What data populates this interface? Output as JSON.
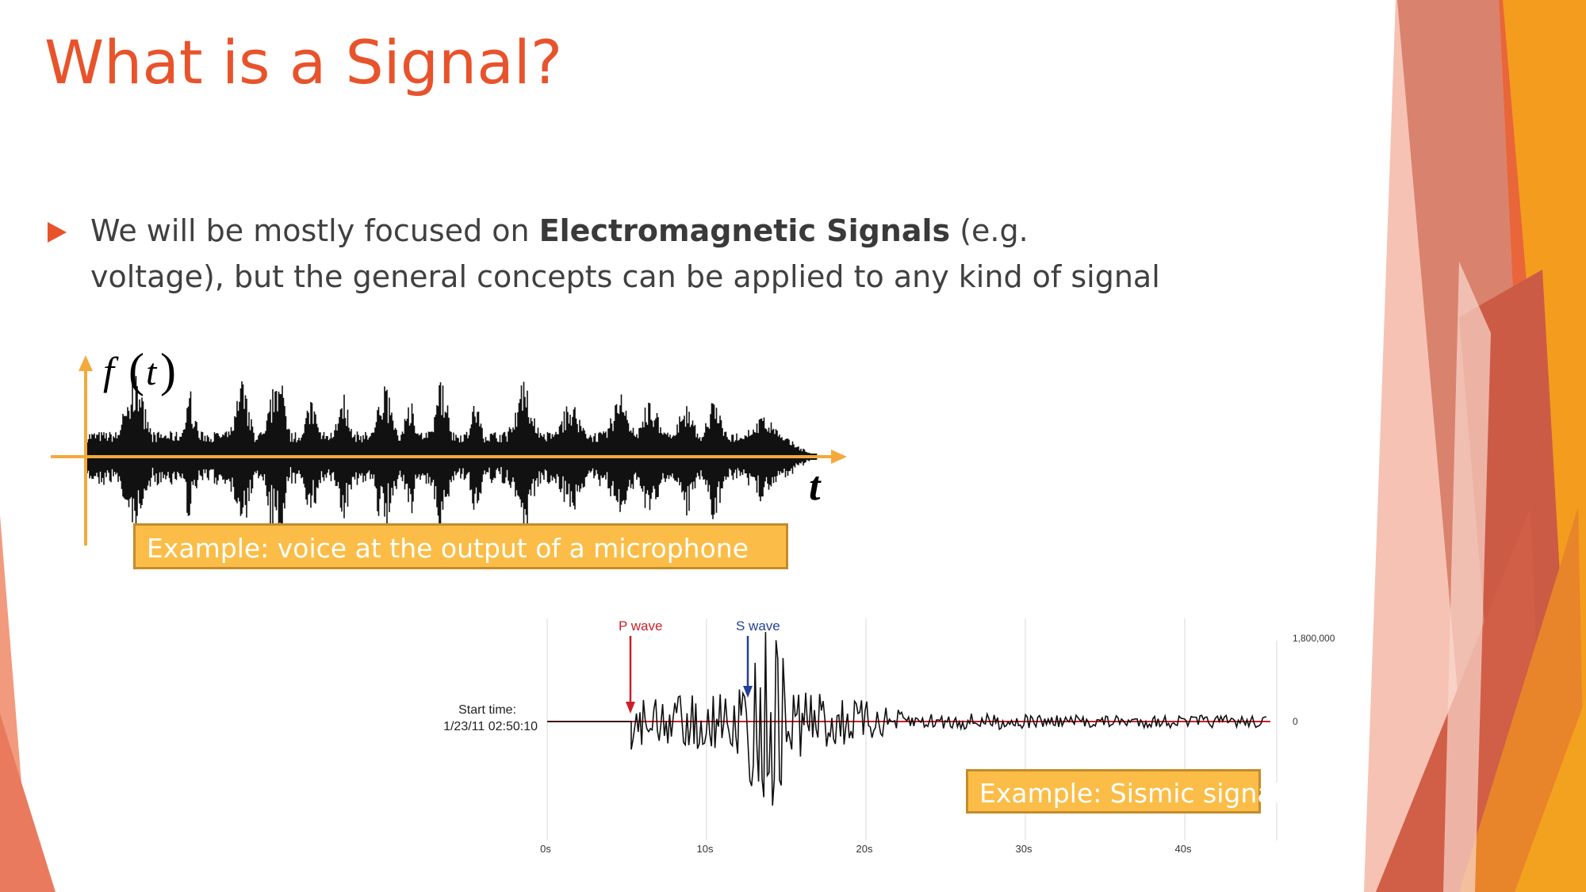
{
  "slide": {
    "title": "What is a Signal?",
    "bullet": {
      "prefix": "We will be mostly focused on ",
      "bold": "Electromagnetic Signals",
      "suffix": " (e.g. voltage), but the general concepts can be applied to any kind of signal"
    }
  },
  "voice_figure": {
    "y_label_f": "f",
    "y_label_paren_open": "(",
    "y_label_t": "t",
    "y_label_paren_close": ")",
    "x_label": "t",
    "caption": "Example: voice at the output of a microphone"
  },
  "seismic_figure": {
    "p_wave_label": "P wave",
    "s_wave_label": "S wave",
    "start_time_label": "Start time:",
    "start_time_value": "1/23/11 02:50:10",
    "y_tick_top": "1,800,000",
    "y_tick_zero": "0",
    "x_ticks": [
      "0s",
      "10s",
      "20s",
      "30s",
      "40s"
    ],
    "caption": "Example: Sismic signal"
  },
  "colors": {
    "title": "#e8532b",
    "accent_orange": "#f5a93b",
    "callout_fill": "#fbbd47",
    "p_wave": "#cc1f2a",
    "s_wave": "#22409a"
  }
}
